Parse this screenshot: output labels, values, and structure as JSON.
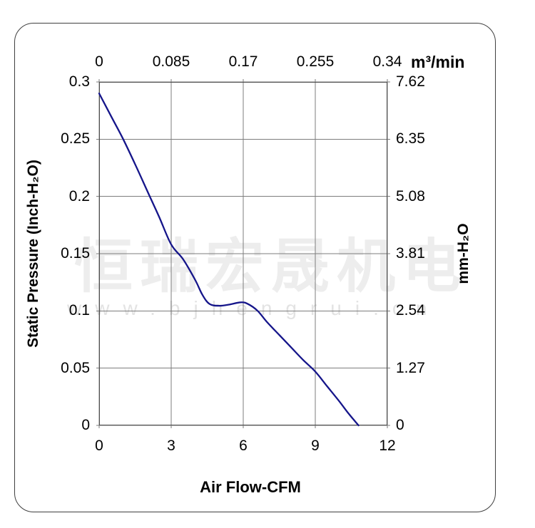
{
  "watermark": {
    "company_text": "恒瑞宏晟机电",
    "url_text": "www.bjhengrui.cn"
  },
  "colors": {
    "curve": "#15158a",
    "grid": "#7d7d7d",
    "plot_border": "#4f4f4f",
    "frame_border": "#3f3f3f",
    "watermark": "#ededed"
  },
  "chart_data": {
    "type": "line",
    "title": "",
    "grid": true,
    "legend": "none",
    "x_bottom": {
      "label": "Air Flow-CFM",
      "ticks": [
        "0",
        "3",
        "6",
        "9",
        "12"
      ],
      "range": [
        0,
        12
      ]
    },
    "x_top": {
      "label": "m³/min",
      "ticks": [
        "0",
        "0.085",
        "0.17",
        "0.255",
        "0.34"
      ],
      "range": [
        0,
        0.34
      ]
    },
    "y_left": {
      "label": "Static Pressure (Inch-H₂O)",
      "ticks": [
        "0.3",
        "0.25",
        "0.2",
        "0.15",
        "0.1",
        "0.05",
        "0"
      ],
      "range": [
        0,
        0.3
      ]
    },
    "y_right": {
      "label": "mm-H₂O",
      "ticks": [
        "7.62",
        "6.35",
        "5.08",
        "3.81",
        "2.54",
        "1.27",
        "0"
      ],
      "range": [
        0,
        7.62
      ]
    },
    "series": [
      {
        "name": "static-pressure-vs-airflow",
        "x_unit": "CFM",
        "y_unit": "Inch-H2O",
        "points": [
          [
            0,
            0.29
          ],
          [
            0.5,
            0.27
          ],
          [
            1.0,
            0.25
          ],
          [
            1.5,
            0.228
          ],
          [
            2.0,
            0.205
          ],
          [
            2.5,
            0.182
          ],
          [
            3.0,
            0.158
          ],
          [
            3.5,
            0.145
          ],
          [
            4.0,
            0.127
          ],
          [
            4.3,
            0.114
          ],
          [
            4.6,
            0.106
          ],
          [
            5.0,
            0.1045
          ],
          [
            5.4,
            0.1055
          ],
          [
            5.9,
            0.1075
          ],
          [
            6.2,
            0.106
          ],
          [
            6.6,
            0.1
          ],
          [
            7.0,
            0.09
          ],
          [
            7.5,
            0.079
          ],
          [
            8.0,
            0.068
          ],
          [
            8.5,
            0.057
          ],
          [
            9.0,
            0.047
          ],
          [
            9.5,
            0.034
          ],
          [
            10.0,
            0.021
          ],
          [
            10.4,
            0.01
          ],
          [
            10.8,
            0.0
          ]
        ]
      }
    ]
  }
}
